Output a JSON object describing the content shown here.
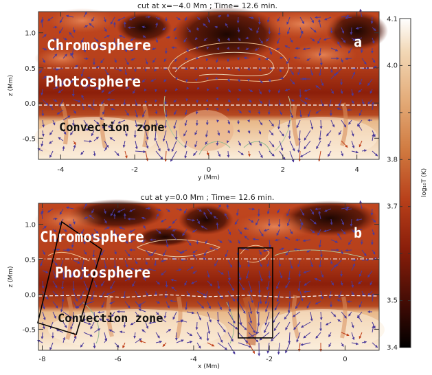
{
  "colorbar": {
    "label": "log₁₀T (K)",
    "range": [
      3.4,
      4.1
    ],
    "ticks": [
      "3.4",
      "3.5",
      "3.6",
      "3.7",
      "3.8",
      "3.9",
      "4.0",
      "4.1"
    ],
    "shown_ticks": [
      "3.4",
      "3.5",
      "3.7",
      "3.8",
      "4.0",
      "4.1"
    ]
  },
  "chart_data": [
    {
      "type": "heatmap",
      "panel": "a",
      "title": "cut at x=−4.0 Mm ; Time= 12.6 min.",
      "xlabel": "y (Mm)",
      "ylabel": "z (Mm)",
      "xlim": [
        -4.6,
        4.6
      ],
      "ylim": [
        -0.8,
        1.3
      ],
      "xticks": [
        "-4",
        "-2",
        "0",
        "2",
        "4"
      ],
      "yticks": [
        "-0.5",
        "0.0",
        "0.5",
        "1.0"
      ],
      "labels": [
        "Chromosphere",
        "Photosphere",
        "Convection zone"
      ],
      "reference_lines": {
        "dash_dot_z": 0.5,
        "dashed_z": 0.0
      }
    },
    {
      "type": "heatmap",
      "panel": "b",
      "title": "cut at y=0.0 Mm ; Time= 12.6 min.",
      "xlabel": "x (Mm)",
      "ylabel": "z (Mm)",
      "xlim": [
        -8.1,
        0.9
      ],
      "ylim": [
        -0.8,
        1.3
      ],
      "xticks": [
        "-8",
        "-6",
        "-4",
        "-2",
        "0"
      ],
      "yticks": [
        "-0.5",
        "0.0",
        "0.5",
        "1.0"
      ],
      "labels": [
        "Chromosphere",
        "Photosphere",
        "Convection zone"
      ],
      "reference_lines": {
        "dash_dot_z": 0.5,
        "dashed_z": 0.0
      }
    }
  ]
}
